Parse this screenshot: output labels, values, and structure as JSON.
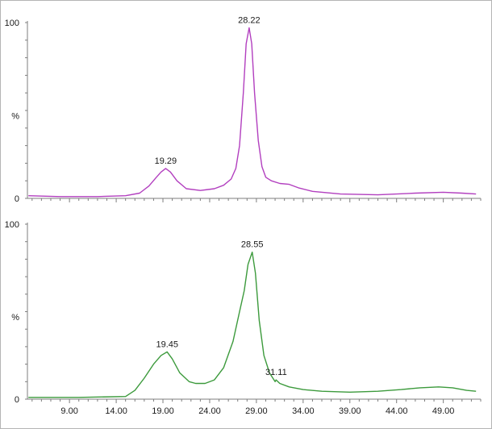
{
  "chart_data": {
    "type": "line",
    "x_ticks": [
      "9.00",
      "14.00",
      "19.00",
      "24.00",
      "29.00",
      "34.00",
      "39.00",
      "44.00",
      "49.00"
    ],
    "xlim": [
      4.5,
      53.0
    ],
    "panels": [
      {
        "id": "top",
        "color": "#b23fbf",
        "ylim": [
          0,
          100
        ],
        "ytick_labels": [
          "0",
          "%",
          "100"
        ],
        "peak_labels": [
          {
            "label": "19.29",
            "x": 19.29,
            "y": 17
          },
          {
            "label": "28.22",
            "x": 28.22,
            "y": 97
          }
        ],
        "x": [
          4.6,
          8.0,
          12.0,
          15.0,
          16.5,
          17.5,
          18.3,
          18.8,
          19.29,
          19.8,
          20.5,
          21.5,
          23.0,
          24.5,
          25.5,
          26.3,
          26.8,
          27.2,
          27.6,
          27.9,
          28.22,
          28.5,
          28.8,
          29.2,
          29.6,
          30.0,
          30.6,
          31.5,
          32.5,
          33.5,
          35.0,
          38.0,
          42.0,
          46.0,
          49.0,
          51.0,
          52.5
        ],
        "y": [
          1.5,
          1.0,
          1.0,
          1.5,
          3.0,
          7.0,
          12.0,
          15.0,
          17.0,
          15.0,
          10.0,
          5.5,
          4.5,
          5.5,
          7.5,
          11.0,
          17.0,
          30.0,
          60.0,
          88.0,
          97.0,
          88.0,
          60.0,
          33.0,
          18.0,
          12.0,
          10.0,
          8.5,
          8.0,
          6.0,
          4.0,
          2.5,
          2.0,
          3.0,
          3.5,
          3.0,
          2.5
        ]
      },
      {
        "id": "bottom",
        "color": "#3c9a3c",
        "ylim": [
          0,
          100
        ],
        "ytick_labels": [
          "0",
          "%",
          "100"
        ],
        "peak_labels": [
          {
            "label": "19.45",
            "x": 19.45,
            "y": 27
          },
          {
            "label": "28.55",
            "x": 28.55,
            "y": 84
          },
          {
            "label": "31.11",
            "x": 31.11,
            "y": 11
          }
        ],
        "x": [
          4.6,
          10.0,
          15.0,
          16.0,
          17.0,
          18.0,
          18.8,
          19.45,
          20.0,
          20.8,
          21.8,
          22.5,
          23.5,
          24.5,
          25.5,
          26.5,
          27.2,
          27.7,
          28.1,
          28.55,
          28.9,
          29.3,
          29.8,
          30.4,
          31.0,
          31.11,
          31.5,
          32.5,
          34.0,
          36.0,
          39.0,
          42.0,
          44.5,
          46.5,
          48.5,
          50.0,
          51.5,
          52.5
        ],
        "y": [
          1.0,
          1.0,
          1.5,
          5.0,
          12.0,
          20.0,
          25.0,
          27.0,
          23.0,
          15.0,
          10.0,
          9.0,
          9.0,
          11.0,
          18.0,
          33.0,
          50.0,
          62.0,
          77.0,
          84.0,
          72.0,
          45.0,
          25.0,
          15.0,
          10.0,
          11.0,
          9.0,
          7.0,
          5.5,
          4.5,
          4.0,
          4.5,
          5.5,
          6.5,
          7.0,
          6.5,
          5.0,
          4.5
        ]
      }
    ]
  }
}
